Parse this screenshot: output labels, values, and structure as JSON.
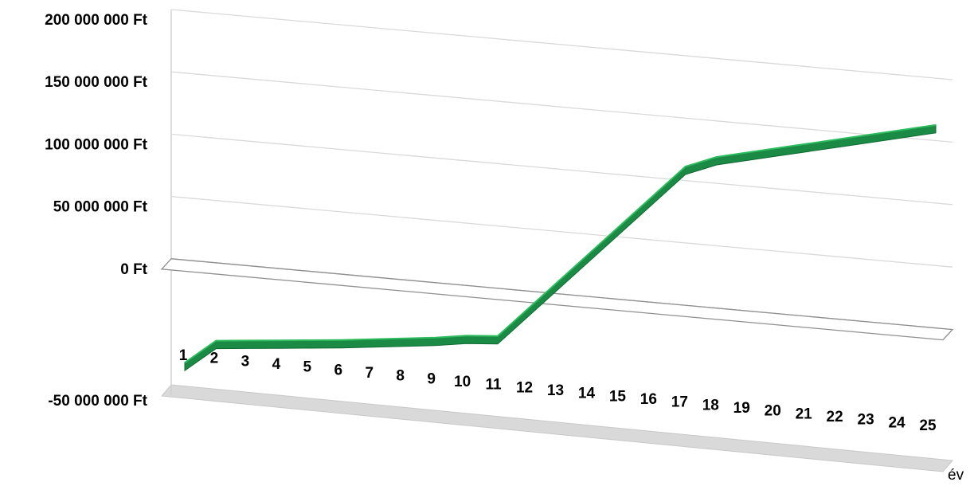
{
  "chart_data": {
    "type": "line",
    "style": "3d-ribbon",
    "title": "",
    "xlabel": "év",
    "ylabel": "",
    "x": [
      1,
      2,
      3,
      4,
      5,
      6,
      7,
      8,
      9,
      10,
      11,
      12,
      13,
      14,
      15,
      16,
      17,
      18,
      19,
      20,
      21,
      22,
      23,
      24,
      25
    ],
    "series": [
      {
        "color": "#1e9e4f",
        "values": [
          -45000000,
          -25000000,
          -22500000,
          -20000000,
          -17500000,
          -15000000,
          -12000000,
          -9000000,
          -6000000,
          -2000000,
          0,
          25000000,
          50000000,
          75000000,
          100000000,
          125000000,
          150000000,
          160000000,
          166000000,
          172000000,
          178000000,
          184000000,
          190000000,
          196000000,
          202000000
        ]
      }
    ],
    "ylim": [
      -50000000,
      200000000
    ],
    "y_ticks": [
      {
        "value": 200000000,
        "label": "200 000 000 Ft"
      },
      {
        "value": 150000000,
        "label": "150 000 000 Ft"
      },
      {
        "value": 100000000,
        "label": "100 000 000 Ft"
      },
      {
        "value": 50000000,
        "label": "50 000 000 Ft"
      },
      {
        "value": 0,
        "label": "0 Ft"
      },
      {
        "value": -50000000,
        "label": "-50 000 000 Ft"
      }
    ],
    "x_tick_labels": [
      "1",
      "2",
      "3",
      "4",
      "5",
      "6",
      "7",
      "8",
      "9",
      "10",
      "11",
      "12",
      "13",
      "14",
      "15",
      "16",
      "17",
      "18",
      "19",
      "20",
      "21",
      "22",
      "23",
      "24",
      "25"
    ],
    "grid": true,
    "legend": "none"
  }
}
